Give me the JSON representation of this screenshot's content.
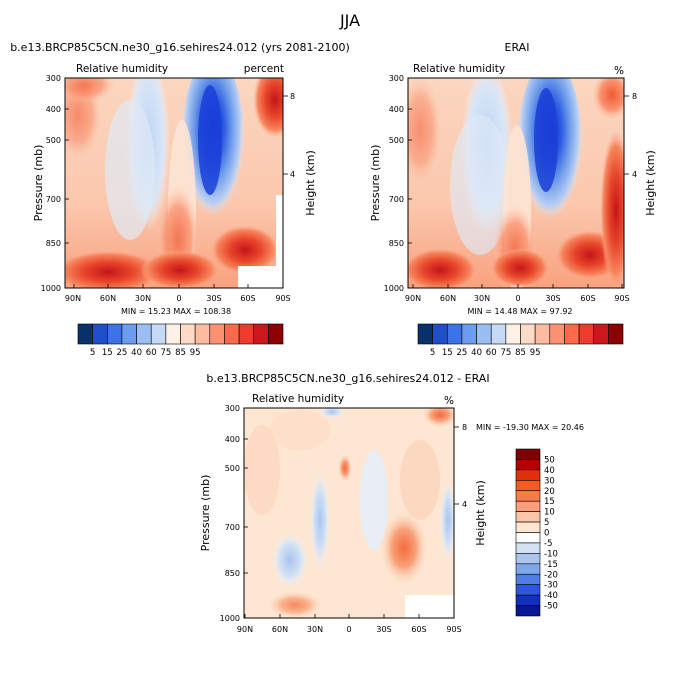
{
  "figure_title": "JJA",
  "chart_data": [
    {
      "type": "heatmap",
      "panel": "model",
      "title": "b.e13.BRCP85C5CN.ne30_g16.sehires24.012 (yrs 2081-2100)",
      "left_label": "Relative humidity",
      "right_label": "percent",
      "ylabel": "Pressure (mb)",
      "y2label": "Height (km)",
      "x_ticks": [
        "90N",
        "60N",
        "30N",
        "0",
        "30S",
        "60S",
        "90S"
      ],
      "y_ticks": [
        300,
        400,
        500,
        700,
        850,
        1000
      ],
      "y2_ticks": [
        8,
        4
      ],
      "stats_text": "MIN =  15.23   MAX = 108.38",
      "min": 15.23,
      "max": 108.38,
      "levels": [
        5,
        15,
        25,
        40,
        60,
        75,
        85,
        95
      ],
      "colorbar_labels": [
        "5",
        "15",
        "25",
        "40",
        "60",
        "75",
        "85",
        "95"
      ],
      "colorbar_colors": [
        "#08306b",
        "#1f4fc8",
        "#3a74e6",
        "#6b9ef0",
        "#9bbef2",
        "#c6daf5",
        "#fdf0e4",
        "#fddbc7",
        "#fcbba1",
        "#fc9272",
        "#fb6a4a",
        "#ef3b2c",
        "#cb181d",
        "#8b0000"
      ]
    },
    {
      "type": "heatmap",
      "panel": "obs",
      "title": "ERAI",
      "left_label": "Relative humidity",
      "right_label": "%",
      "ylabel": "Pressure (mb)",
      "y2label": "Height (km)",
      "x_ticks": [
        "90N",
        "60N",
        "30N",
        "0",
        "30S",
        "60S",
        "90S"
      ],
      "y_ticks": [
        300,
        400,
        500,
        700,
        850,
        1000
      ],
      "y2_ticks": [
        8,
        4
      ],
      "stats_text": "MIN =  14.48   MAX =  97.92",
      "min": 14.48,
      "max": 97.92,
      "levels": [
        5,
        15,
        25,
        40,
        60,
        75,
        85,
        95
      ],
      "colorbar_labels": [
        "5",
        "15",
        "25",
        "40",
        "60",
        "75",
        "85",
        "95"
      ],
      "colorbar_colors": [
        "#08306b",
        "#1f4fc8",
        "#3a74e6",
        "#6b9ef0",
        "#9bbef2",
        "#c6daf5",
        "#fdf0e4",
        "#fddbc7",
        "#fcbba1",
        "#fc9272",
        "#fb6a4a",
        "#ef3b2c",
        "#cb181d",
        "#8b0000"
      ]
    },
    {
      "type": "heatmap",
      "panel": "diff",
      "title": "b.e13.BRCP85C5CN.ne30_g16.sehires24.012 - ERAI",
      "left_label": "Relative humidity",
      "right_label": "%",
      "ylabel": "Pressure (mb)",
      "y2label": "Height (km)",
      "x_ticks": [
        "90N",
        "60N",
        "30N",
        "0",
        "30S",
        "60S",
        "90S"
      ],
      "y_ticks": [
        300,
        400,
        500,
        700,
        850,
        1000
      ],
      "y2_ticks": [
        8,
        4
      ],
      "stats_text": "MIN = -19.30   MAX =  20.46",
      "min": -19.3,
      "max": 20.46,
      "levels": [
        50,
        40,
        30,
        20,
        15,
        10,
        5,
        0,
        -5,
        -10,
        -15,
        -20,
        -30,
        -40,
        -50
      ],
      "colorbar_labels": [
        "50",
        "40",
        "30",
        "20",
        "15",
        "10",
        "5",
        "0",
        "-5",
        "-10",
        "-15",
        "-20",
        "-30",
        "-40",
        "-50"
      ],
      "colorbar_colors": [
        "#7f0000",
        "#b30000",
        "#e0300c",
        "#f85a22",
        "#fb7b4b",
        "#fc9e7a",
        "#fdc5a8",
        "#fde6d2",
        "#ffffff",
        "#d4e3f4",
        "#aac6ee",
        "#7ea6ea",
        "#4f7ee6",
        "#2d55e0",
        "#1230c0",
        "#061894"
      ]
    }
  ]
}
